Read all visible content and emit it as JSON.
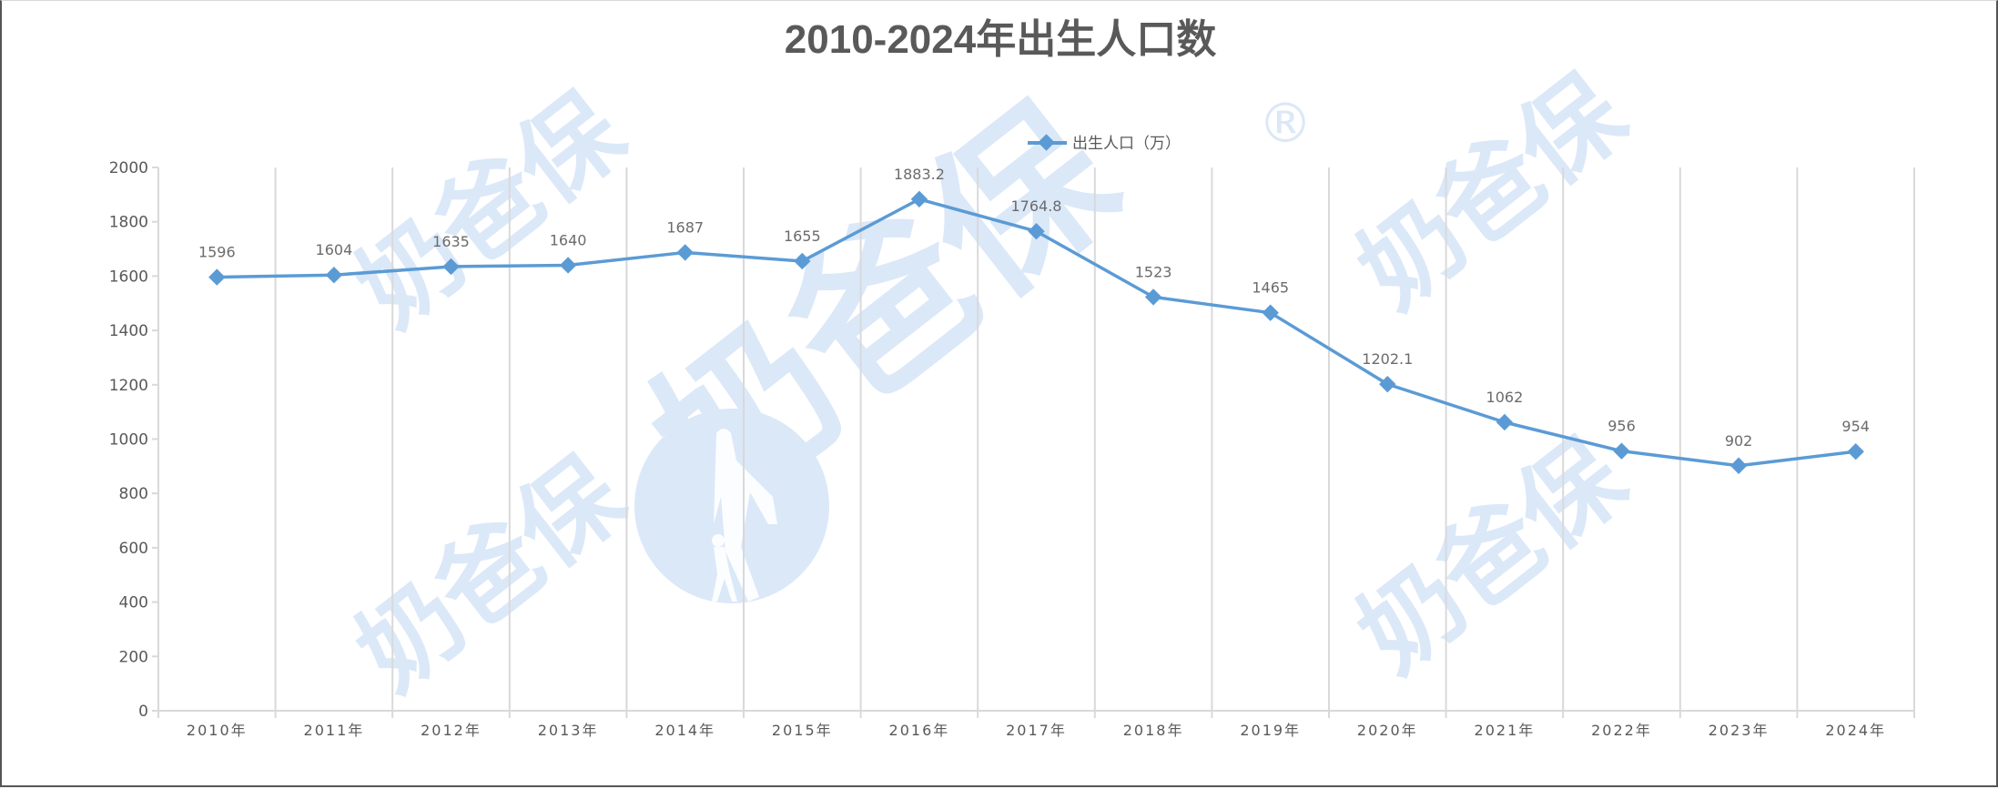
{
  "chart_data": {
    "type": "line",
    "title": "2010-2024年出生人口数",
    "xlabel": "",
    "ylabel": "",
    "ylim": [
      0,
      2000
    ],
    "yticks": [
      0,
      200,
      400,
      600,
      800,
      1000,
      1200,
      1400,
      1600,
      1800,
      2000
    ],
    "grid": "vertical category gridlines",
    "legend_position": "top",
    "categories": [
      "2010年",
      "2011年",
      "2012年",
      "2013年",
      "2014年",
      "2015年",
      "2016年",
      "2017年",
      "2018年",
      "2019年",
      "2020年",
      "2021年",
      "2022年",
      "2023年",
      "2024年"
    ],
    "series": [
      {
        "name": "出生人口（万）",
        "color": "#5b9bd5",
        "marker": "diamond",
        "values": [
          1596,
          1604,
          1635,
          1640,
          1687,
          1655,
          1883.2,
          1764.8,
          1523,
          1465,
          1202.1,
          1062,
          956,
          902,
          954
        ],
        "labels": [
          "1596",
          "1604",
          "1635",
          "1640",
          "1687",
          "1655",
          "1883.2",
          "1764.8",
          "1523",
          "1465",
          "1202.1",
          "1062",
          "956",
          "902",
          "954"
        ]
      }
    ]
  },
  "watermark": {
    "brand_text": "奶爸保",
    "registered_mark": "®",
    "color": "#dbe8f8"
  },
  "colors": {
    "line": "#5b9bd5",
    "gridline": "#d9d9d9",
    "text": "#595959"
  }
}
